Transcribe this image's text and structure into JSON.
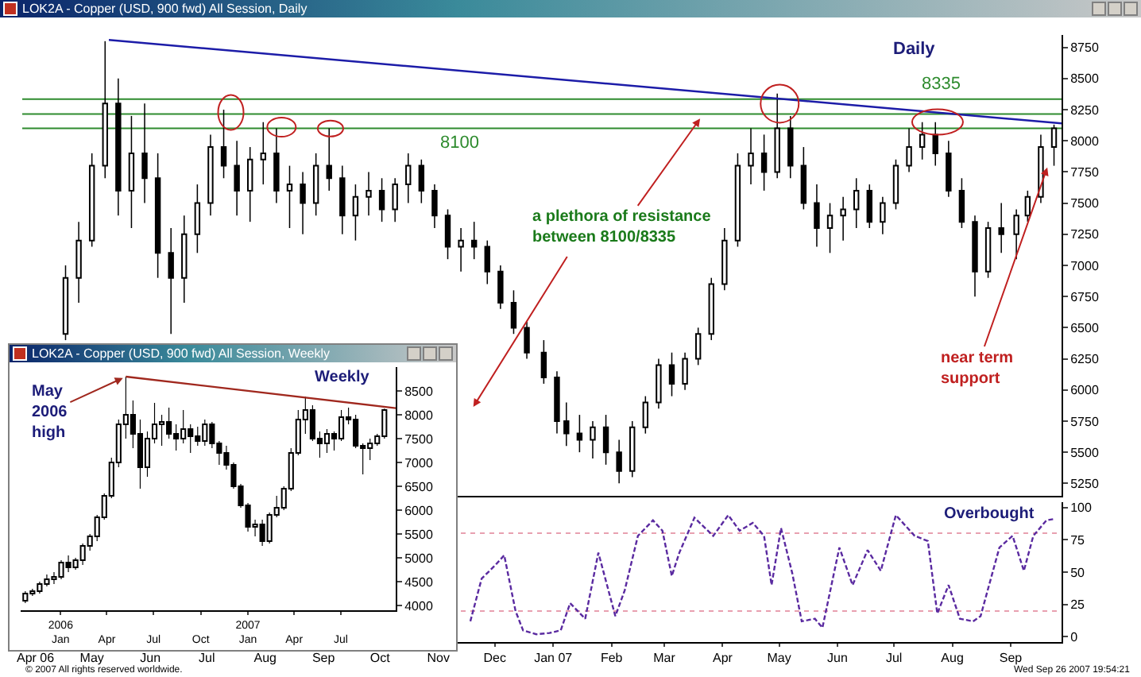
{
  "chart_data": [
    {
      "type": "candlestick",
      "title": "LOK2A - Copper (USD, 900 fwd) All Session, Daily",
      "color": "#000000",
      "x": [
        "2006-04-17",
        "2006-04-24",
        "2006-05-01",
        "2006-05-08",
        "2006-05-15",
        "2006-05-22",
        "2006-05-29",
        "2006-06-05",
        "2006-06-12",
        "2006-06-19",
        "2006-06-26",
        "2006-07-03",
        "2006-07-10",
        "2006-07-17",
        "2006-07-24",
        "2006-07-31",
        "2006-08-07",
        "2006-08-14",
        "2006-08-21",
        "2006-08-28",
        "2006-09-04",
        "2006-09-11",
        "2006-09-18",
        "2006-09-25",
        "2006-10-02",
        "2006-10-09",
        "2006-10-16",
        "2006-10-23",
        "2006-10-30",
        "2006-11-06",
        "2006-11-13",
        "2006-11-20",
        "2006-11-27",
        "2006-12-04",
        "2006-12-11",
        "2006-12-18",
        "2006-12-27",
        "2007-01-03",
        "2007-01-08",
        "2007-01-15",
        "2007-01-22",
        "2007-01-29",
        "2007-02-05",
        "2007-02-12",
        "2007-02-19",
        "2007-02-26",
        "2007-03-05",
        "2007-03-12",
        "2007-03-19",
        "2007-03-26",
        "2007-04-02",
        "2007-04-09",
        "2007-04-16",
        "2007-04-23",
        "2007-04-30",
        "2007-05-07",
        "2007-05-14",
        "2007-05-21",
        "2007-05-28",
        "2007-06-04",
        "2007-06-11",
        "2007-06-18",
        "2007-06-25",
        "2007-07-02",
        "2007-07-09",
        "2007-07-16",
        "2007-07-23",
        "2007-07-30",
        "2007-08-06",
        "2007-08-13",
        "2007-08-20",
        "2007-08-27",
        "2007-09-04",
        "2007-09-10",
        "2007-09-17",
        "2007-09-24"
      ],
      "ohlc": [
        [
          6450,
          7000,
          6400,
          6900
        ],
        [
          6900,
          7350,
          6700,
          7200
        ],
        [
          7200,
          7900,
          7150,
          7800
        ],
        [
          7800,
          8800,
          7700,
          8300
        ],
        [
          8300,
          8500,
          7400,
          7600
        ],
        [
          7600,
          8200,
          7300,
          7900
        ],
        [
          7900,
          8300,
          7500,
          7700
        ],
        [
          7700,
          7900,
          6900,
          7100
        ],
        [
          7100,
          7300,
          6450,
          6900
        ],
        [
          6900,
          7400,
          6700,
          7250
        ],
        [
          7250,
          7650,
          7100,
          7500
        ],
        [
          7500,
          8050,
          7400,
          7950
        ],
        [
          7950,
          8250,
          7700,
          7800
        ],
        [
          7800,
          8000,
          7400,
          7600
        ],
        [
          7600,
          7950,
          7350,
          7850
        ],
        [
          7850,
          8150,
          7650,
          7900
        ],
        [
          7900,
          8100,
          7500,
          7600
        ],
        [
          7600,
          7800,
          7300,
          7650
        ],
        [
          7650,
          7750,
          7250,
          7500
        ],
        [
          7500,
          7900,
          7400,
          7800
        ],
        [
          7800,
          8100,
          7600,
          7700
        ],
        [
          7700,
          7800,
          7250,
          7400
        ],
        [
          7400,
          7650,
          7200,
          7550
        ],
        [
          7550,
          7750,
          7400,
          7600
        ],
        [
          7600,
          7700,
          7350,
          7450
        ],
        [
          7450,
          7700,
          7350,
          7650
        ],
        [
          7650,
          7900,
          7500,
          7800
        ],
        [
          7800,
          7850,
          7500,
          7600
        ],
        [
          7600,
          7650,
          7300,
          7400
        ],
        [
          7400,
          7450,
          7050,
          7150
        ],
        [
          7150,
          7300,
          6950,
          7200
        ],
        [
          7200,
          7350,
          7050,
          7150
        ],
        [
          7150,
          7200,
          6850,
          6950
        ],
        [
          6950,
          7000,
          6650,
          6700
        ],
        [
          6700,
          6800,
          6450,
          6500
        ],
        [
          6500,
          6550,
          6250,
          6300
        ],
        [
          6300,
          6400,
          6050,
          6100
        ],
        [
          6100,
          6150,
          5650,
          5750
        ],
        [
          5750,
          5900,
          5550,
          5650
        ],
        [
          5650,
          5800,
          5500,
          5600
        ],
        [
          5600,
          5750,
          5450,
          5700
        ],
        [
          5700,
          5800,
          5400,
          5500
        ],
        [
          5500,
          5600,
          5250,
          5350
        ],
        [
          5350,
          5750,
          5300,
          5700
        ],
        [
          5700,
          5950,
          5650,
          5900
        ],
        [
          5900,
          6250,
          5850,
          6200
        ],
        [
          6200,
          6300,
          5950,
          6050
        ],
        [
          6050,
          6300,
          6000,
          6250
        ],
        [
          6250,
          6500,
          6200,
          6450
        ],
        [
          6450,
          6900,
          6400,
          6850
        ],
        [
          6850,
          7300,
          6800,
          7200
        ],
        [
          7200,
          7900,
          7150,
          7800
        ],
        [
          7800,
          8100,
          7650,
          7900
        ],
        [
          7900,
          8050,
          7600,
          7750
        ],
        [
          7750,
          8380,
          7700,
          8100
        ],
        [
          8100,
          8200,
          7700,
          7800
        ],
        [
          7800,
          7950,
          7450,
          7500
        ],
        [
          7500,
          7650,
          7150,
          7300
        ],
        [
          7300,
          7500,
          7100,
          7400
        ],
        [
          7400,
          7550,
          7200,
          7450
        ],
        [
          7450,
          7700,
          7300,
          7600
        ],
        [
          7600,
          7650,
          7300,
          7350
        ],
        [
          7350,
          7550,
          7250,
          7500
        ],
        [
          7500,
          7850,
          7450,
          7800
        ],
        [
          7800,
          8100,
          7750,
          7950
        ],
        [
          7950,
          8150,
          7850,
          8050
        ],
        [
          8050,
          8150,
          7800,
          7900
        ],
        [
          7900,
          8000,
          7550,
          7600
        ],
        [
          7600,
          7700,
          7300,
          7350
        ],
        [
          7350,
          7400,
          6750,
          6950
        ],
        [
          6950,
          7350,
          6900,
          7300
        ],
        [
          7300,
          7500,
          7100,
          7250
        ],
        [
          7250,
          7450,
          7050,
          7400
        ],
        [
          7400,
          7600,
          7350,
          7550
        ],
        [
          7550,
          8050,
          7500,
          7950
        ],
        [
          7950,
          8130,
          7800,
          8100
        ]
      ],
      "series": [
        {
          "type": "line",
          "color": "#1c1ca8",
          "x": [
            "2006-05-10",
            "2007-09-28"
          ],
          "values": [
            8810,
            8140
          ]
        }
      ],
      "xlim": [
        "2006-03-25",
        "2007-09-28"
      ],
      "ylim": [
        5150,
        8850
      ],
      "yticks": [
        5250,
        5500,
        5750,
        6000,
        6250,
        6500,
        6750,
        7000,
        7250,
        7500,
        7750,
        8000,
        8250,
        8500,
        8750
      ],
      "tick_labels": "y",
      "grid": false,
      "ref_lines": [
        {
          "axis": "y",
          "value": 8335,
          "label": "8335",
          "color": "#2e8b2e"
        },
        {
          "axis": "y",
          "value": 8215,
          "color": "#2e8b2e"
        },
        {
          "axis": "y",
          "value": 8100,
          "label": "8100",
          "color": "#2e8b2e"
        }
      ],
      "annotations": [
        "Daily",
        {
          "text": "a plethora of resistance between 8100/8335",
          "x": "2007-03-21",
          "y": 8200
        },
        {
          "text": "near term support",
          "x": "2007-09-21",
          "y": 7810
        }
      ]
    },
    {
      "type": "line",
      "x": [
        "2006-11-18",
        "2006-11-24",
        "2006-12-01",
        "2006-12-06",
        "2006-12-12",
        "2006-12-16",
        "2006-12-23",
        "2006-12-30",
        "2007-01-05",
        "2007-01-10",
        "2007-01-18",
        "2007-01-25",
        "2007-02-03",
        "2007-02-08",
        "2007-02-15",
        "2007-02-23",
        "2007-02-28",
        "2007-03-05",
        "2007-03-09",
        "2007-03-17",
        "2007-03-27",
        "2007-04-04",
        "2007-04-10",
        "2007-04-17",
        "2007-04-23",
        "2007-04-27",
        "2007-05-02",
        "2007-05-08",
        "2007-05-13",
        "2007-05-20",
        "2007-05-24",
        "2007-06-02",
        "2007-06-09",
        "2007-06-17",
        "2007-06-24",
        "2007-07-02",
        "2007-07-12",
        "2007-07-19",
        "2007-07-24",
        "2007-07-30",
        "2007-08-05",
        "2007-08-12",
        "2007-08-16",
        "2007-08-26",
        "2007-09-02",
        "2007-09-08",
        "2007-09-13",
        "2007-09-20",
        "2007-09-24"
      ],
      "series": [
        {
          "color": "#5a2aa0",
          "line_style": "dashed",
          "values": [
            12,
            45,
            55,
            63,
            20,
            5,
            2,
            3,
            5,
            26,
            14,
            65,
            16,
            36,
            78,
            90,
            82,
            47,
            65,
            92,
            78,
            94,
            82,
            88,
            78,
            40,
            84,
            49,
            12,
            14,
            7,
            69,
            40,
            67,
            51,
            94,
            78,
            74,
            18,
            40,
            14,
            12,
            16,
            69,
            78,
            51,
            78,
            90,
            91
          ]
        }
      ],
      "xlim": [
        "2006-03-25",
        "2007-09-28"
      ],
      "xticks": [
        {
          "value": "2006-04-01",
          "label": "Apr 06"
        },
        {
          "value": "2006-05-01",
          "label": "May"
        },
        {
          "value": "2006-06-01",
          "label": "Jun"
        },
        {
          "value": "2006-07-01",
          "label": "Jul"
        },
        {
          "value": "2006-08-01",
          "label": "Aug"
        },
        {
          "value": "2006-09-01",
          "label": "Sep"
        },
        {
          "value": "2006-10-01",
          "label": "Oct"
        },
        {
          "value": "2006-11-01",
          "label": "Nov"
        },
        {
          "value": "2006-12-01",
          "label": "Dec"
        },
        {
          "value": "2007-01-01",
          "label": "Jan 07"
        },
        {
          "value": "2007-02-01",
          "label": "Feb"
        },
        {
          "value": "2007-03-01",
          "label": "Mar"
        },
        {
          "value": "2007-04-01",
          "label": "Apr"
        },
        {
          "value": "2007-05-01",
          "label": "May"
        },
        {
          "value": "2007-06-01",
          "label": "Jun"
        },
        {
          "value": "2007-07-01",
          "label": "Jul"
        },
        {
          "value": "2007-08-01",
          "label": "Aug"
        },
        {
          "value": "2007-09-01",
          "label": "Sep"
        }
      ],
      "ylim": [
        -4,
        104
      ],
      "yticks": [
        0,
        25,
        50,
        75,
        100
      ],
      "grid": false,
      "ref_lines": [
        {
          "axis": "y",
          "value": 80,
          "color": "#e8a0b0",
          "line_style": "dotted"
        },
        {
          "axis": "y",
          "value": 20,
          "color": "#e8a0b0",
          "line_style": "dotted"
        }
      ],
      "annotations": [
        "Overbought",
        "© 2007 All rights reserved worldwide.",
        "Wed Sep 26 2007 19:54:21"
      ]
    },
    {
      "type": "candlestick",
      "title": "LOK2A - Copper (USD, 900 fwd) All Session, Weekly",
      "color": "#000000",
      "x": [
        "2005-10-24",
        "2005-11-07",
        "2005-11-21",
        "2005-12-05",
        "2005-12-19",
        "2006-01-02",
        "2006-01-16",
        "2006-01-30",
        "2006-02-13",
        "2006-02-27",
        "2006-03-13",
        "2006-03-27",
        "2006-04-10",
        "2006-04-24",
        "2006-05-08",
        "2006-05-22",
        "2006-06-05",
        "2006-06-19",
        "2006-07-03",
        "2006-07-17",
        "2006-07-31",
        "2006-08-14",
        "2006-08-28",
        "2006-09-11",
        "2006-09-25",
        "2006-10-09",
        "2006-10-23",
        "2006-11-06",
        "2006-11-20",
        "2006-12-04",
        "2006-12-18",
        "2007-01-01",
        "2007-01-15",
        "2007-01-29",
        "2007-02-12",
        "2007-02-26",
        "2007-03-12",
        "2007-03-26",
        "2007-04-09",
        "2007-04-23",
        "2007-05-07",
        "2007-05-21",
        "2007-06-04",
        "2007-06-18",
        "2007-07-02",
        "2007-07-16",
        "2007-07-30",
        "2007-08-13",
        "2007-08-27",
        "2007-09-10",
        "2007-09-24"
      ],
      "ohlc": [
        [
          4100,
          4300,
          4050,
          4250
        ],
        [
          4250,
          4350,
          4200,
          4300
        ],
        [
          4300,
          4500,
          4250,
          4450
        ],
        [
          4450,
          4650,
          4400,
          4550
        ],
        [
          4550,
          4700,
          4450,
          4600
        ],
        [
          4600,
          4950,
          4550,
          4900
        ],
        [
          4900,
          5050,
          4700,
          4800
        ],
        [
          4800,
          5000,
          4750,
          4950
        ],
        [
          4950,
          5300,
          4850,
          5250
        ],
        [
          5250,
          5500,
          5150,
          5450
        ],
        [
          5450,
          5900,
          5350,
          5850
        ],
        [
          5850,
          6350,
          5800,
          6300
        ],
        [
          6300,
          7100,
          6250,
          7000
        ],
        [
          7000,
          7900,
          6900,
          7800
        ],
        [
          7800,
          8800,
          7500,
          8000
        ],
        [
          8000,
          8300,
          7300,
          7600
        ],
        [
          7600,
          7900,
          6450,
          6900
        ],
        [
          6900,
          7650,
          6700,
          7500
        ],
        [
          7500,
          8250,
          7400,
          7800
        ],
        [
          7800,
          8000,
          7350,
          7850
        ],
        [
          7850,
          8150,
          7500,
          7600
        ],
        [
          7600,
          7800,
          7250,
          7500
        ],
        [
          7500,
          8100,
          7400,
          7700
        ],
        [
          7700,
          7800,
          7200,
          7550
        ],
        [
          7550,
          7750,
          7350,
          7450
        ],
        [
          7450,
          7900,
          7350,
          7800
        ],
        [
          7800,
          7850,
          7300,
          7400
        ],
        [
          7400,
          7450,
          6950,
          7200
        ],
        [
          7200,
          7350,
          6850,
          6950
        ],
        [
          6950,
          7000,
          6450,
          6500
        ],
        [
          6500,
          6550,
          6050,
          6100
        ],
        [
          6100,
          6150,
          5550,
          5650
        ],
        [
          5650,
          5800,
          5450,
          5700
        ],
        [
          5700,
          5800,
          5250,
          5350
        ],
        [
          5350,
          5950,
          5300,
          5900
        ],
        [
          5900,
          6300,
          5850,
          6050
        ],
        [
          6050,
          6500,
          6000,
          6450
        ],
        [
          6450,
          7300,
          6400,
          7200
        ],
        [
          7200,
          8100,
          7150,
          7900
        ],
        [
          7900,
          8380,
          7600,
          8100
        ],
        [
          8100,
          8200,
          7450,
          7500
        ],
        [
          7500,
          7650,
          7100,
          7400
        ],
        [
          7400,
          7700,
          7200,
          7600
        ],
        [
          7600,
          7650,
          7250,
          7500
        ],
        [
          7500,
          8100,
          7450,
          7950
        ],
        [
          7950,
          8150,
          7800,
          7900
        ],
        [
          7900,
          8000,
          7300,
          7350
        ],
        [
          7350,
          7400,
          6750,
          7300
        ],
        [
          7300,
          7500,
          7050,
          7400
        ],
        [
          7400,
          7600,
          7350,
          7550
        ],
        [
          7550,
          8130,
          7500,
          8100
        ]
      ],
      "series": [
        {
          "type": "line",
          "color": "#a0281e",
          "x": [
            "2006-05-08",
            "2007-10-16"
          ],
          "values": [
            8800,
            8140
          ]
        }
      ],
      "xlim": [
        "2005-10-15",
        "2007-10-16"
      ],
      "xticks": [
        {
          "value": "2006-01-01",
          "label": "2006\nJan"
        },
        {
          "value": "2006-04-01",
          "label": "Apr"
        },
        {
          "value": "2006-07-01",
          "label": "Jul"
        },
        {
          "value": "2006-10-01",
          "label": "Oct"
        },
        {
          "value": "2007-01-01",
          "label": "2007\nJan"
        },
        {
          "value": "2007-04-01",
          "label": "Apr"
        },
        {
          "value": "2007-07-01",
          "label": "Jul"
        }
      ],
      "ylim": [
        3900,
        9000
      ],
      "yticks": [
        4000,
        4500,
        5000,
        5500,
        6000,
        6500,
        7000,
        7500,
        8000,
        8500
      ],
      "grid": false,
      "annotations": [
        "Weekly",
        {
          "text": "May 2006 high",
          "x": "2006-05-08",
          "y": 8800
        }
      ]
    }
  ]
}
